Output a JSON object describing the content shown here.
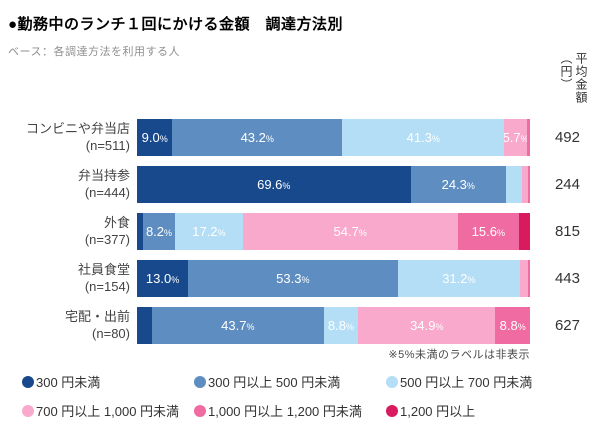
{
  "title": "●勤務中のランチ１回にかける金額　調達方法別",
  "subtitle": "ベース：各調達方法を利用する人",
  "avg_header": "平均金額（円）",
  "note": "※5%未満のラベルは非表示",
  "colors": {
    "under_300": "#17498C",
    "300_500": "#5E8EC1",
    "500_700": "#B3DEF5",
    "700_1000": "#F9A9CB",
    "1000_1200": "#EF6BA2",
    "over_1200": "#D81A5E"
  },
  "legend": [
    {
      "label": "300 円未満",
      "color": "#17498C"
    },
    {
      "label": "300 円以上 500 円未満",
      "color": "#5E8EC1"
    },
    {
      "label": "500 円以上 700 円未満",
      "color": "#B3DEF5"
    },
    {
      "label": "700 円以上 1,000 円未満",
      "color": "#F9A9CB"
    },
    {
      "label": "1,000 円以上 1,200 円未満",
      "color": "#EF6BA2"
    },
    {
      "label": "1,200 円以上",
      "color": "#D81A5E"
    }
  ],
  "chart_data": {
    "type": "bar",
    "stacked": true,
    "orientation": "horizontal",
    "unit": "%",
    "label_threshold": 5,
    "categories": [
      "コンビニや弁当店",
      "弁当持参",
      "外食",
      "社員食堂",
      "宅配・出前"
    ],
    "n": [
      511,
      444,
      377,
      154,
      80
    ],
    "series": [
      {
        "name": "300 円未満",
        "color": "#17498C",
        "values": [
          9.0,
          69.6,
          1.5,
          13.0,
          3.8
        ]
      },
      {
        "name": "300 円以上 500 円未満",
        "color": "#5E8EC1",
        "values": [
          43.2,
          24.3,
          8.2,
          53.3,
          43.7
        ]
      },
      {
        "name": "500 円以上 700 円未満",
        "color": "#B3DEF5",
        "values": [
          41.3,
          4.1,
          17.2,
          31.2,
          8.8
        ]
      },
      {
        "name": "700 円以上 1,000 円未満",
        "color": "#F9A9CB",
        "values": [
          5.7,
          1.4,
          54.7,
          1.9,
          34.9
        ]
      },
      {
        "name": "1,000 円以上 1,200 円未満",
        "color": "#EF6BA2",
        "values": [
          0.8,
          0.6,
          15.6,
          0.6,
          8.8
        ]
      },
      {
        "name": "1,200 円以上",
        "color": "#D81A5E",
        "values": [
          0.0,
          0.0,
          2.8,
          0.0,
          0.0
        ]
      }
    ],
    "averages": [
      492,
      244,
      815,
      443,
      627
    ],
    "averages_label": "平均金額（円）"
  }
}
